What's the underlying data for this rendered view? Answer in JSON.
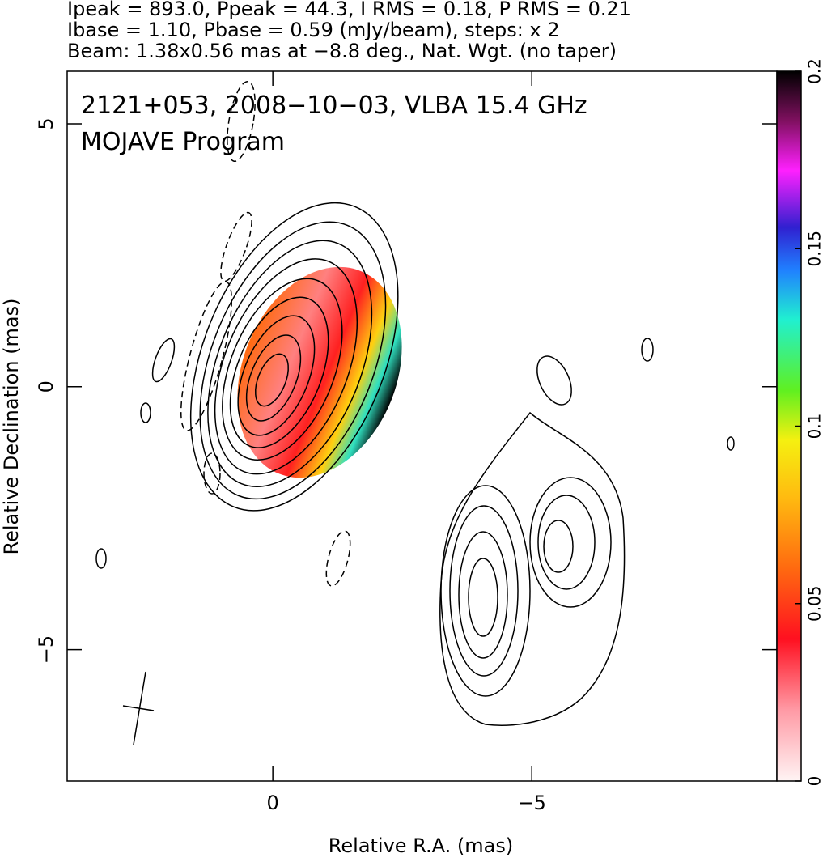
{
  "chart_data": {
    "type": "contour",
    "header": [
      "Ipeak = 893.0, Ppeak = 44.3, I RMS = 0.18, P RMS = 0.21",
      "Ibase = 1.10, Pbase = 0.59 (mJy/beam), steps: x 2",
      "Beam: 1.38x0.56 mas at −8.8 deg., Nat. Wgt. (no taper)"
    ],
    "annotations": [
      "2121+053, 2008−10−03, VLBA 15.4 GHz",
      "MOJAVE Program"
    ],
    "xlabel": "Relative R.A. (mas)",
    "ylabel": "Relative Declination (mas)",
    "xlim": [
      3.97,
      -9.73
    ],
    "ylim": [
      -7.5,
      6
    ],
    "xticks": [
      0,
      {
        "value": -5,
        "label": "−5"
      }
    ],
    "yticks": [
      {
        "value": -5,
        "label": "−5"
      },
      0,
      5
    ],
    "colorbar": {
      "lim": [
        0,
        0.2
      ],
      "ticks": [
        0,
        0.05,
        0.1,
        0.15,
        0.2
      ]
    }
  }
}
